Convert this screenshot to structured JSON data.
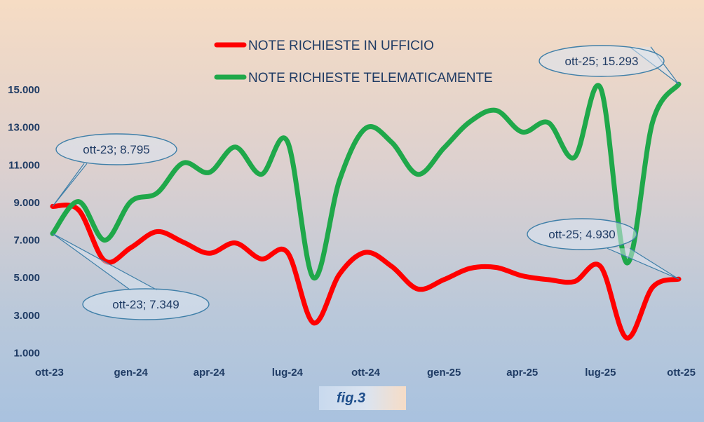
{
  "chart_data": {
    "type": "line",
    "x_labels": [
      "ott-23",
      "gen-24",
      "apr-24",
      "lug-24",
      "ott-24",
      "gen-25",
      "apr-25",
      "lug-25",
      "ott-25"
    ],
    "ylim": [
      1000,
      15000
    ],
    "y_ticks": [
      "1.000",
      "3.000",
      "5.000",
      "7.000",
      "9.000",
      "11.000",
      "13.000",
      "15.000"
    ],
    "y_tick_values": [
      1000,
      3000,
      5000,
      7000,
      9000,
      11000,
      13000,
      15000
    ],
    "series": [
      {
        "name": "NOTE RICHIESTE IN UFFICIO",
        "color": "#ff0000",
        "values": [
          8795,
          8600,
          5900,
          6600,
          7450,
          6900,
          6300,
          6850,
          6000,
          6350,
          2600,
          5200,
          6350,
          5600,
          4400,
          4900,
          5500,
          5550,
          5100,
          4900,
          4800,
          5600,
          1800,
          4500,
          4930
        ]
      },
      {
        "name": "NOTE RICHIESTE TELEMATICAMENTE",
        "color": "#1fa84a",
        "values": [
          7349,
          9050,
          7000,
          9050,
          9500,
          11100,
          10600,
          11950,
          10500,
          12250,
          5000,
          10200,
          12950,
          12200,
          10500,
          11900,
          13300,
          13900,
          12750,
          13250,
          11400,
          15100,
          5800,
          13300,
          15293
        ]
      }
    ],
    "annotations": [
      {
        "text": "ott-23; 8.795",
        "x_index": 0,
        "series": 0
      },
      {
        "text": "ott-23; 7.349",
        "x_index": 0,
        "series": 1
      },
      {
        "text": "ott-25; 15.293",
        "x_index": 24,
        "series": 1
      },
      {
        "text": "ott-25; 4.930",
        "x_index": 24,
        "series": 0
      }
    ],
    "grid": false,
    "legend_position": "top-center"
  },
  "caption": {
    "label": "fig.3"
  }
}
